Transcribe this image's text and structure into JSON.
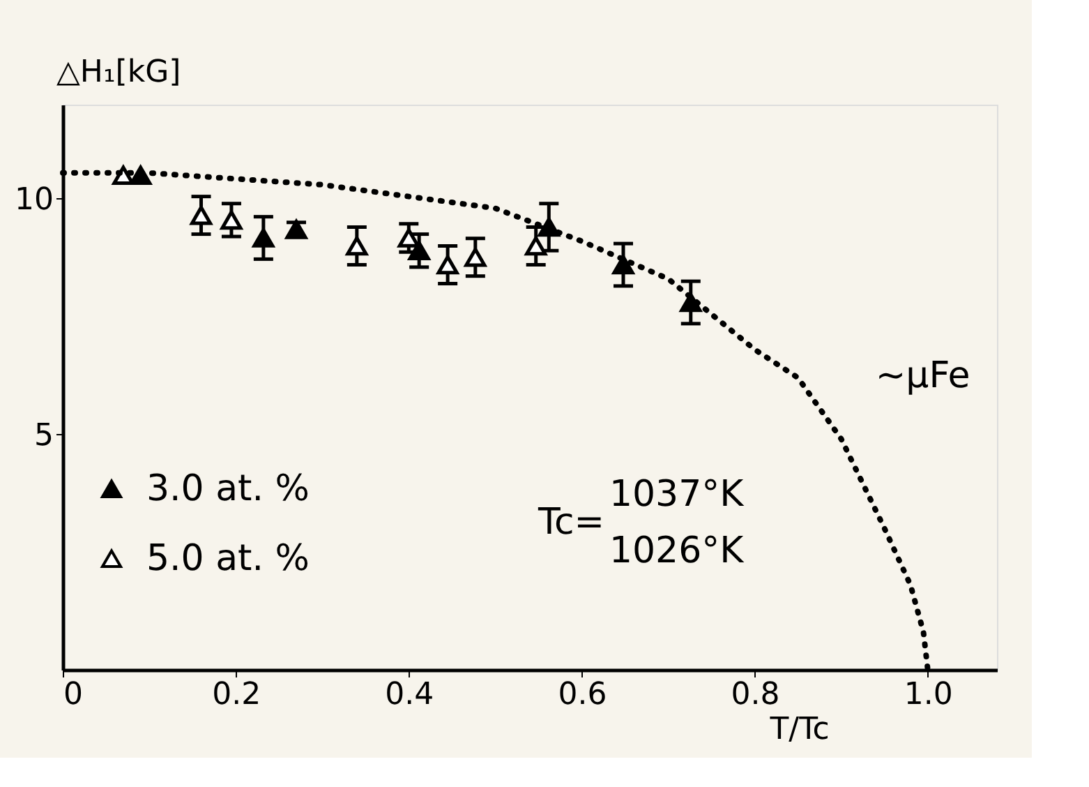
{
  "chart_data": {
    "type": "scatter",
    "xlabel": "T/Tc",
    "ylabel": "△H₁[kG]",
    "xlim": [
      0,
      1.08
    ],
    "ylim": [
      0,
      12
    ],
    "xticks": [
      {
        "value": 0,
        "label": "0"
      },
      0.2,
      0.4,
      0.6,
      0.8,
      {
        "value": 1.0,
        "label": "1.0"
      }
    ],
    "yticks": [
      5,
      10
    ],
    "grid": false,
    "legend": "bottom left",
    "series": [
      {
        "name": "3.0 at. %",
        "color": "#000000",
        "marker": "triangle",
        "x": [
          0.09,
          0.232,
          0.27,
          0.412,
          0.562,
          0.648,
          0.726
        ],
        "values": [
          10.5,
          9.17,
          9.35,
          8.9,
          9.4,
          8.6,
          7.8
        ],
        "errors": [
          null,
          0.45,
          0.15,
          0.35,
          0.5,
          0.45,
          0.45
        ]
      },
      {
        "name": "5.0 at. %",
        "color": "#ffffff",
        "marker": "triangle",
        "x": [
          0.07,
          0.16,
          0.195,
          0.34,
          0.4,
          0.445,
          0.477,
          0.547
        ],
        "values": [
          10.5,
          9.65,
          9.55,
          9.0,
          9.17,
          8.6,
          8.76,
          9.0
        ],
        "errors": [
          null,
          0.4,
          0.35,
          0.4,
          0.3,
          0.4,
          0.4,
          0.4
        ]
      },
      {
        "type": "line",
        "color": "#000000",
        "line_style": "dotted",
        "x": [
          0,
          0.1,
          0.3,
          0.5,
          0.6,
          0.7,
          0.8,
          0.85,
          0.9,
          0.95,
          0.98,
          0.995,
          1.0
        ],
        "values": [
          10.55,
          10.55,
          10.3,
          9.8,
          9.1,
          8.3,
          6.8,
          6.2,
          4.9,
          3.0,
          1.8,
          0.8,
          0
        ]
      }
    ],
    "annotations": [
      "~μFe",
      "Tc=",
      "1037°K",
      "1026°K"
    ]
  }
}
